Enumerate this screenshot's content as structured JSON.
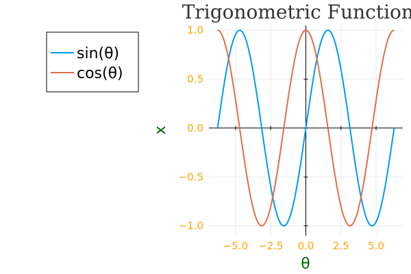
{
  "chart_data": {
    "type": "line",
    "title": "Trigonometric Functions",
    "xlabel": "θ",
    "ylabel": "x",
    "xlim": [
      -6.9,
      6.9
    ],
    "ylim": [
      -1.1,
      1.05
    ],
    "x_range": [
      -6.283,
      6.283
    ],
    "xticks": [
      -5.0,
      -2.5,
      0.0,
      2.5,
      5.0
    ],
    "xtick_labels": [
      "−5.0",
      "−2.5",
      "0.0",
      "2.5",
      "5.0"
    ],
    "yticks": [
      -1.0,
      -0.5,
      0.0,
      0.5,
      1.0
    ],
    "ytick_labels": [
      "−1.0",
      "−0.5",
      "0.0",
      "0.5",
      "1.0"
    ],
    "grid": true,
    "legend_position": "outside-top-left",
    "series": [
      {
        "name": "sin(θ)",
        "function": "sin",
        "color": "#009AFA"
      },
      {
        "name": "cos(θ)",
        "function": "cos",
        "color": "#E26F46"
      }
    ],
    "tick_color": "#FFA500",
    "axis_label_color": "#006400",
    "title_color": "#333333"
  }
}
